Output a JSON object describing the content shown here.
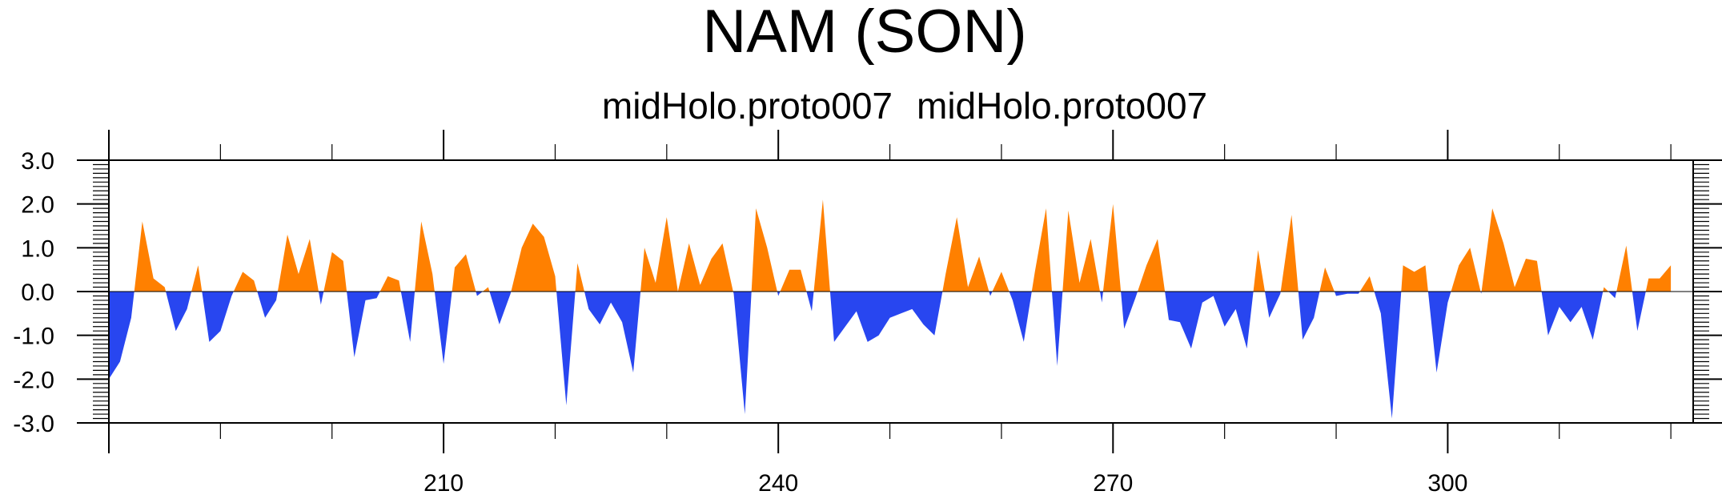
{
  "chart_data": {
    "type": "area",
    "title": "NAM (SON)",
    "subtitle_left": "midHolo.proto007",
    "subtitle_right": "midHolo.proto007",
    "xlabel": "",
    "ylabel": "",
    "xlim": [
      180,
      322
    ],
    "ylim": [
      -3.0,
      3.0
    ],
    "x_ticks": [
      210,
      240,
      270,
      300
    ],
    "y_ticks": [
      "3.0",
      "2.0",
      "1.0",
      "0.0",
      "-1.0",
      "-2.0",
      "-3.0"
    ],
    "positive_color": "#ff8000",
    "negative_color": "#2846f0",
    "grid": false,
    "x_start": 180,
    "values": [
      -2.0,
      -1.6,
      -0.6,
      1.6,
      0.3,
      0.1,
      -0.9,
      -0.4,
      0.6,
      -1.15,
      -0.9,
      -0.1,
      0.45,
      0.25,
      -0.6,
      -0.2,
      1.3,
      0.4,
      1.2,
      -0.3,
      0.9,
      0.7,
      -1.5,
      -0.2,
      -0.15,
      0.35,
      0.25,
      -1.15,
      1.6,
      0.4,
      -1.65,
      0.55,
      0.85,
      -0.1,
      0.1,
      -0.75,
      -0.05,
      1.0,
      1.55,
      1.25,
      0.35,
      -2.6,
      0.65,
      -0.4,
      -0.75,
      -0.25,
      -0.7,
      -1.85,
      1.0,
      0.2,
      1.7,
      0.0,
      1.1,
      0.15,
      0.75,
      1.1,
      -0.05,
      -2.8,
      1.9,
      1.0,
      -0.1,
      0.5,
      0.5,
      -0.45,
      2.1,
      -1.15,
      -0.8,
      -0.45,
      -1.15,
      -1.0,
      -0.6,
      -0.5,
      -0.4,
      -0.75,
      -1.0,
      0.4,
      1.7,
      0.1,
      0.8,
      -0.1,
      0.45,
      -0.2,
      -1.15,
      0.45,
      1.9,
      -1.7,
      1.85,
      0.2,
      1.2,
      -0.25,
      2.0,
      -0.85,
      -0.15,
      0.6,
      1.2,
      -0.65,
      -0.7,
      -1.3,
      -0.25,
      -0.1,
      -0.8,
      -0.4,
      -1.3,
      0.95,
      -0.6,
      -0.05,
      1.75,
      -1.1,
      -0.6,
      0.55,
      -0.1,
      -0.05,
      -0.05,
      0.35,
      -0.5,
      -2.9,
      0.6,
      0.45,
      0.6,
      -1.85,
      -0.25,
      0.6,
      1.0,
      -0.05,
      1.9,
      1.1,
      0.1,
      0.75,
      0.7,
      -1.0,
      -0.35,
      -0.7,
      -0.35,
      -1.1,
      0.1,
      -0.15,
      1.05,
      -0.9,
      0.3,
      0.3,
      0.6
    ]
  }
}
